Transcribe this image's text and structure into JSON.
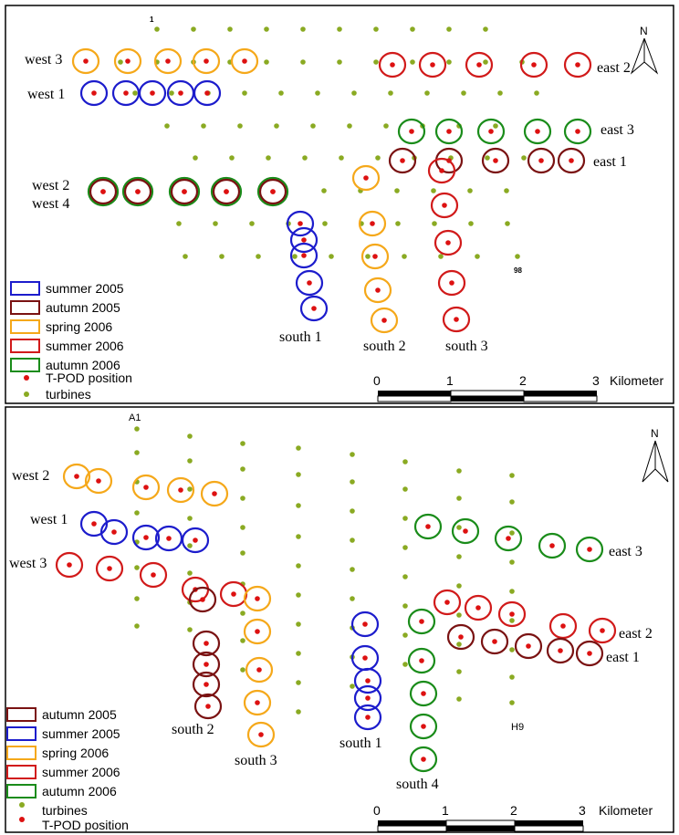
{
  "colors": {
    "summer_2005": "#1c1ccc",
    "autumn_2005": "#7a1212",
    "spring_2006": "#f5a81a",
    "summer_2006": "#d11a1a",
    "autumn_2006": "#1a8c1a",
    "tpod": "#dd1111",
    "turbine": "#8aaa22"
  },
  "north_label": "N",
  "scale_labels": [
    "0",
    "1",
    "2",
    "3"
  ],
  "scale_unit": "Kilometer",
  "panels": [
    {
      "turbine_labels": [
        "1",
        "98"
      ],
      "legend": [
        "summer 2005",
        "autumn 2005",
        "spring 2006",
        "summer 2006",
        "autumn 2006",
        "T-POD position",
        "turbines"
      ],
      "area_labels": [
        "west 3",
        "west 1",
        "west 2",
        "west 4",
        "east 2",
        "east 3",
        "east 1",
        "south 1",
        "south 2",
        "south 3"
      ]
    },
    {
      "turbine_labels": [
        "A1",
        "H9"
      ],
      "legend": [
        "autumn 2005",
        "summer 2005",
        "spring 2006",
        "summer 2006",
        "autumn 2006",
        "turbines",
        "T-POD position"
      ],
      "area_labels": [
        "west 2",
        "west 1",
        "west 3",
        "east 3",
        "east 2",
        "east 1",
        "south 2",
        "south 3",
        "south 1",
        "south 4"
      ]
    }
  ]
}
